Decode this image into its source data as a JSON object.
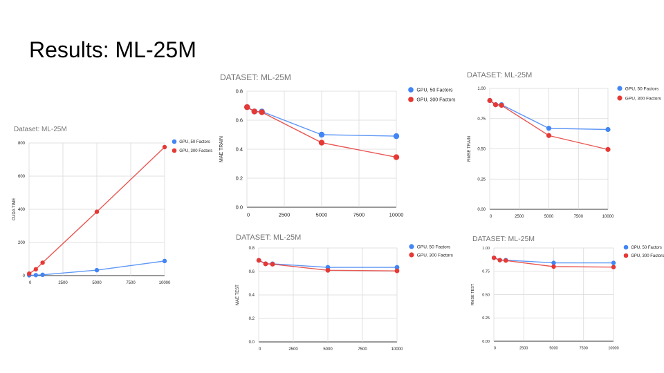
{
  "slide": {
    "title": "Results: ML-25M"
  },
  "colors": {
    "gpu_50": "#4285F4",
    "gpu_300": "#E53935",
    "grid": "#d9d9d9"
  },
  "chart_data": [
    {
      "id": "cuda",
      "type": "line",
      "title": "Dataset: ML-25M",
      "xlabel": "",
      "ylabel": "CUDA TIME",
      "xlim": [
        0,
        10000
      ],
      "ylim": [
        0,
        800
      ],
      "xticks": [
        "0",
        "2500",
        "5000",
        "7500",
        "10000"
      ],
      "yticks": [
        "0",
        "200",
        "400",
        "600",
        "800"
      ],
      "grid": true,
      "legend": "right",
      "series": [
        {
          "name": "GPU, 50 Factors",
          "x": [
            10,
            500,
            1000,
            5000,
            10000
          ],
          "y": [
            2,
            3,
            5,
            33,
            88
          ]
        },
        {
          "name": "GPU, 300 Factors",
          "x": [
            10,
            500,
            1000,
            5000,
            10000
          ],
          "y": [
            12,
            38,
            78,
            385,
            775
          ]
        }
      ]
    },
    {
      "id": "mae_train",
      "type": "line",
      "title": "DATASET: ML-25M",
      "xlabel": "",
      "ylabel": "MAE TRAIN",
      "xlim": [
        0,
        10000
      ],
      "ylim": [
        0,
        0.8
      ],
      "xticks": [
        "0",
        "2500",
        "5000",
        "7500",
        "10000"
      ],
      "yticks": [
        "0.0",
        "0.2",
        "0.4",
        "0.6",
        "0.8"
      ],
      "grid": true,
      "legend": "right",
      "series": [
        {
          "name": "GPU, 50 Factors",
          "x": [
            10,
            500,
            1000,
            5000,
            10000
          ],
          "y": [
            0.69,
            0.66,
            0.66,
            0.5,
            0.49
          ]
        },
        {
          "name": "GPU, 300 Factors",
          "x": [
            10,
            500,
            1000,
            5000,
            10000
          ],
          "y": [
            0.69,
            0.66,
            0.655,
            0.445,
            0.345
          ]
        }
      ]
    },
    {
      "id": "rmse_train",
      "type": "line",
      "title": "DATASET: ML-25M",
      "xlabel": "",
      "ylabel": "RMSE TRAIN",
      "xlim": [
        0,
        10000
      ],
      "ylim": [
        0,
        1.0
      ],
      "xticks": [
        "0",
        "2500",
        "5000",
        "7500",
        "10000"
      ],
      "yticks": [
        "0.00",
        "0.25",
        "0.50",
        "0.75",
        "1.00"
      ],
      "grid": true,
      "legend": "right",
      "series": [
        {
          "name": "GPU, 50 Factors",
          "x": [
            10,
            500,
            1000,
            5000,
            10000
          ],
          "y": [
            0.9,
            0.865,
            0.865,
            0.67,
            0.66
          ]
        },
        {
          "name": "GPU, 300 Factors",
          "x": [
            10,
            500,
            1000,
            5000,
            10000
          ],
          "y": [
            0.9,
            0.865,
            0.86,
            0.61,
            0.495
          ]
        }
      ]
    },
    {
      "id": "mae_test",
      "type": "line",
      "title": "DATASET: ML-25M",
      "xlabel": "",
      "ylabel": "MAE TEST",
      "xlim": [
        0,
        10000
      ],
      "ylim": [
        0,
        0.8
      ],
      "xticks": [
        "0",
        "2500",
        "5000",
        "7500",
        "10000"
      ],
      "yticks": [
        "0.0",
        "0.2",
        "0.4",
        "0.6",
        "0.8"
      ],
      "grid": true,
      "legend": "right",
      "series": [
        {
          "name": "GPU, 50 Factors",
          "x": [
            10,
            500,
            1000,
            5000,
            10000
          ],
          "y": [
            0.695,
            0.665,
            0.665,
            0.635,
            0.635
          ]
        },
        {
          "name": "GPU, 300 Factors",
          "x": [
            10,
            500,
            1000,
            5000,
            10000
          ],
          "y": [
            0.695,
            0.665,
            0.662,
            0.61,
            0.605
          ]
        }
      ]
    },
    {
      "id": "rmse_test",
      "type": "line",
      "title": "DATASET: ML-25M",
      "xlabel": "",
      "ylabel": "RMSE TEST",
      "xlim": [
        0,
        10000
      ],
      "ylim": [
        0,
        1.0
      ],
      "xticks": [
        "0",
        "2500",
        "5000",
        "7500",
        "10000"
      ],
      "yticks": [
        "0.00",
        "0.25",
        "0.50",
        "0.75",
        "1.00"
      ],
      "grid": true,
      "legend": "right",
      "series": [
        {
          "name": "GPU, 50 Factors",
          "x": [
            10,
            500,
            1000,
            5000,
            10000
          ],
          "y": [
            0.895,
            0.87,
            0.87,
            0.84,
            0.84
          ]
        },
        {
          "name": "GPU, 300 Factors",
          "x": [
            10,
            500,
            1000,
            5000,
            10000
          ],
          "y": [
            0.895,
            0.87,
            0.865,
            0.8,
            0.795
          ]
        }
      ]
    }
  ]
}
